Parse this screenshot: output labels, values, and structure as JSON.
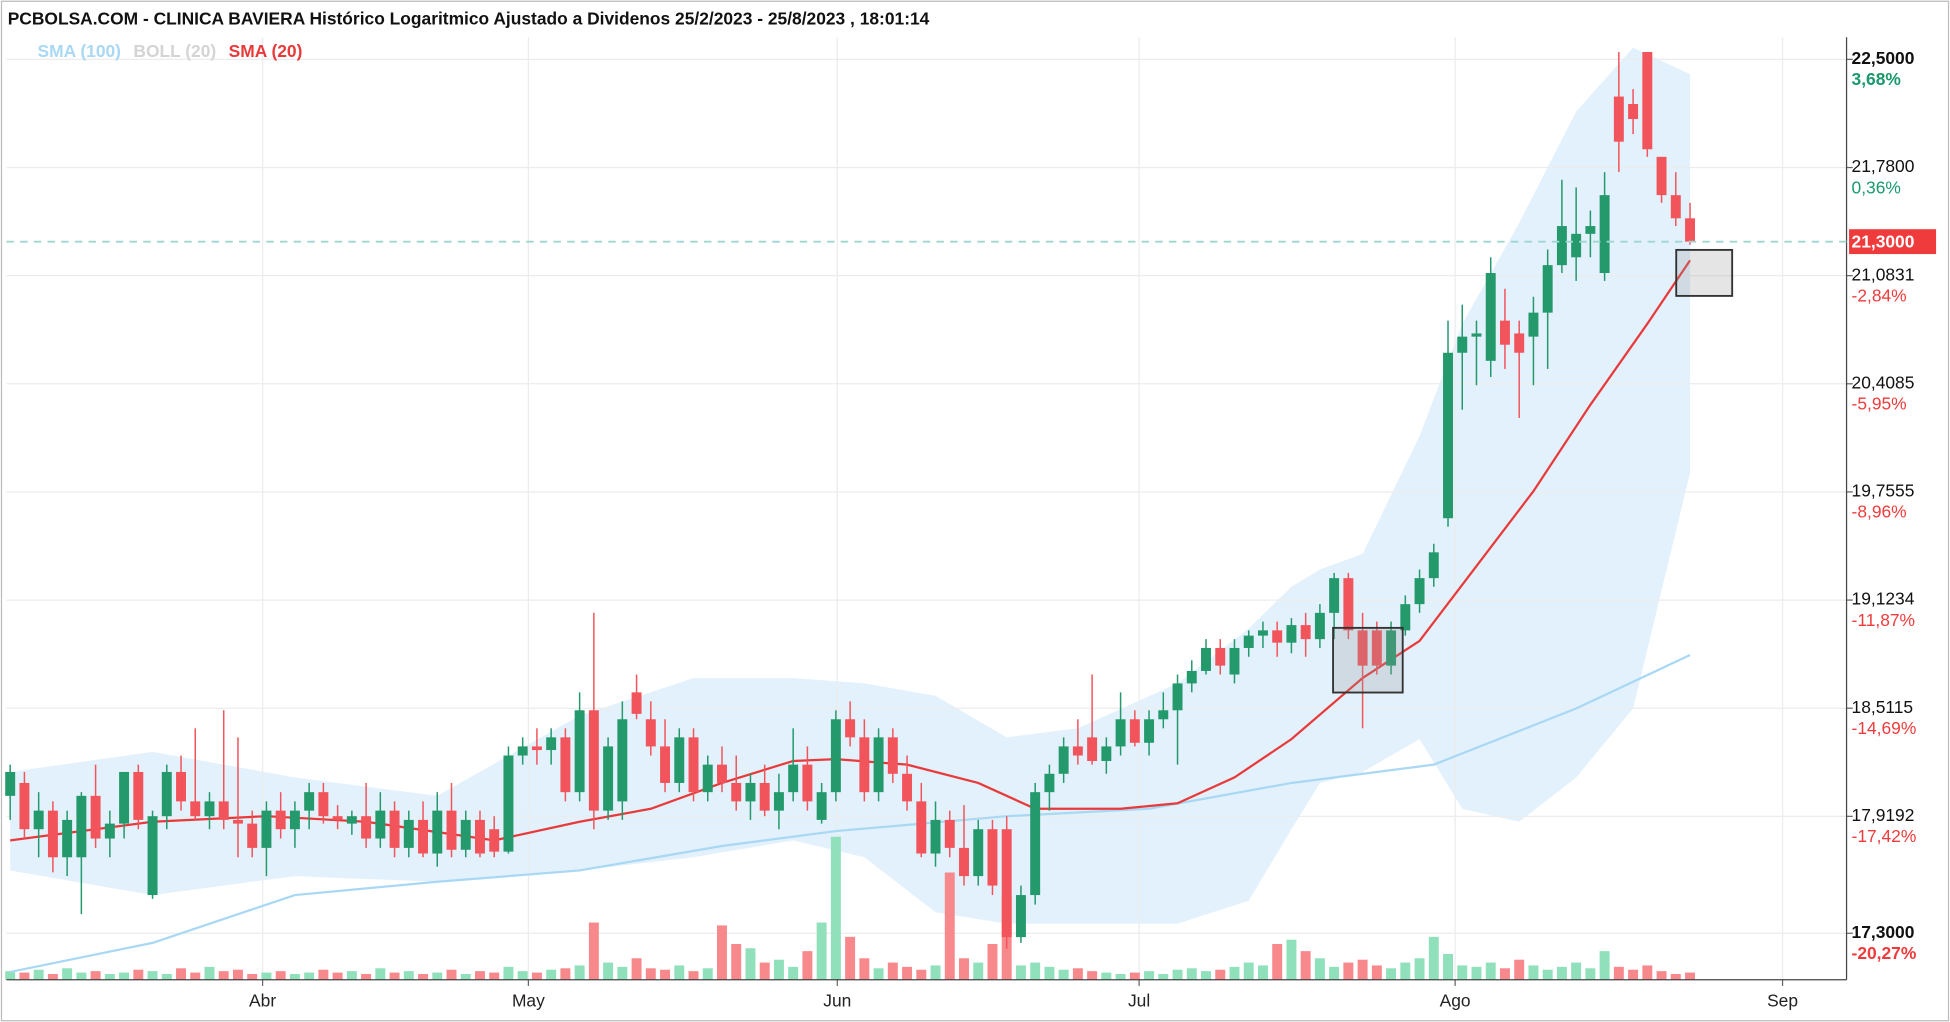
{
  "chart_data": {
    "type": "candlestick",
    "title": "PCBOLSA.COM - CLINICA BAVIERA Histórico Logaritmico Ajustado a Dividenos 25/2/2023 - 25/8/2023 , 18:01:14",
    "log_scale": true,
    "grid": true,
    "ylim": [
      17.06,
      22.65
    ],
    "yticks": [
      {
        "value": 22.5,
        "label": "22,5000"
      },
      {
        "value": 21.78,
        "label": "21,7800"
      },
      {
        "value": 21.0831,
        "label": "21,0831"
      },
      {
        "value": 20.4085,
        "label": "20,4085"
      },
      {
        "value": 19.7555,
        "label": "19,7555"
      },
      {
        "value": 19.1234,
        "label": "19,1234"
      },
      {
        "value": 18.5115,
        "label": "18,5115"
      },
      {
        "value": 17.9192,
        "label": "17,9192"
      },
      {
        "value": 17.3,
        "label": "17,3000"
      }
    ],
    "ytick_change_labels": [
      "3,68%",
      "0,36%",
      "-2,84%",
      "-5,95%",
      "-8,96%",
      "-11,87%",
      "-14,69%",
      "-17,42%",
      "-20,27%"
    ],
    "xticks": [
      {
        "value": 17.73,
        "label": "Abr"
      },
      {
        "value": 36.4,
        "label": "May"
      },
      {
        "value": 58.1,
        "label": "Jun"
      },
      {
        "value": 79.3,
        "label": "Jul"
      },
      {
        "value": 101.5,
        "label": "Ago"
      },
      {
        "value": 124.5,
        "label": "Sep"
      }
    ],
    "last_price": {
      "value": 21.3,
      "label": "21,3000"
    },
    "up_color": "#23996c",
    "down_color": "#f2545b",
    "open": [
      18.03,
      18.1,
      17.85,
      17.95,
      17.7,
      17.7,
      18.03,
      17.8,
      17.88,
      18.16,
      17.5,
      17.92,
      18.16,
      18.0,
      17.92,
      18.0,
      17.9,
      17.88,
      17.75,
      17.95,
      17.85,
      17.95,
      18.05,
      17.92,
      17.88,
      17.92,
      17.8,
      17.95,
      17.75,
      17.9,
      17.72,
      17.95,
      17.74,
      17.9,
      17.85,
      17.73,
      18.25,
      18.3,
      18.28,
      18.35,
      18.05,
      18.5,
      17.95,
      18.0,
      18.6,
      18.45,
      18.3,
      18.1,
      18.35,
      18.05,
      18.2,
      18.1,
      18.0,
      18.1,
      17.95,
      18.05,
      18.2,
      17.9,
      18.05,
      18.45,
      18.35,
      18.05,
      18.35,
      18.15,
      18.0,
      17.72,
      17.9,
      17.75,
      17.6,
      17.85,
      17.85,
      17.28,
      17.5,
      18.05,
      18.15,
      18.3,
      18.35,
      18.22,
      18.3,
      18.45,
      18.32,
      18.45,
      18.5,
      18.65,
      18.72,
      18.85,
      18.7,
      18.85,
      18.92,
      18.95,
      18.88,
      18.98,
      18.9,
      19.05,
      19.25,
      18.95,
      18.95,
      18.75,
      18.95,
      19.1,
      19.25,
      19.6,
      20.6,
      20.7,
      20.55,
      20.8,
      20.72,
      20.7,
      20.85,
      21.15,
      21.2,
      21.35,
      21.1,
      22.25,
      22.2,
      22.55,
      21.85,
      21.6,
      21.45
    ],
    "high": [
      18.2,
      18.16,
      18.05,
      18.0,
      17.95,
      18.05,
      18.2,
      17.95,
      18.16,
      18.2,
      17.95,
      18.2,
      18.25,
      18.4,
      18.05,
      18.5,
      18.35,
      17.95,
      18.0,
      18.05,
      18.0,
      18.1,
      18.1,
      17.98,
      17.95,
      18.1,
      18.05,
      18.0,
      17.95,
      18.0,
      18.05,
      18.1,
      17.95,
      17.95,
      17.92,
      18.3,
      18.35,
      18.4,
      18.4,
      18.4,
      18.6,
      19.05,
      18.35,
      18.55,
      18.7,
      18.55,
      18.45,
      18.4,
      18.4,
      18.25,
      18.3,
      18.25,
      18.15,
      18.2,
      18.15,
      18.4,
      18.3,
      18.1,
      18.5,
      18.55,
      18.45,
      18.4,
      18.4,
      18.25,
      18.1,
      18.0,
      17.95,
      17.98,
      17.9,
      17.9,
      17.92,
      17.55,
      18.1,
      18.2,
      18.35,
      18.45,
      18.7,
      18.35,
      18.6,
      18.5,
      18.5,
      18.6,
      18.7,
      18.78,
      18.9,
      18.9,
      18.9,
      18.95,
      19.0,
      19.0,
      19.02,
      19.05,
      19.1,
      19.28,
      19.28,
      19.05,
      19.0,
      19.0,
      19.15,
      19.3,
      19.45,
      20.8,
      20.9,
      20.8,
      21.2,
      21.0,
      20.8,
      20.95,
      21.25,
      21.7,
      21.65,
      21.5,
      21.75,
      22.55,
      22.3,
      22.55,
      21.85,
      21.75,
      21.55
    ],
    "low": [
      17.9,
      17.8,
      17.7,
      17.62,
      17.6,
      17.4,
      17.75,
      17.7,
      17.8,
      17.85,
      17.48,
      17.85,
      17.95,
      17.9,
      17.85,
      17.85,
      17.7,
      17.7,
      17.6,
      17.8,
      17.75,
      17.85,
      17.88,
      17.85,
      17.82,
      17.75,
      17.75,
      17.7,
      17.7,
      17.7,
      17.65,
      17.7,
      17.7,
      17.7,
      17.7,
      17.72,
      18.2,
      18.2,
      18.2,
      18.0,
      18.0,
      17.85,
      17.9,
      17.9,
      18.45,
      18.25,
      18.05,
      18.05,
      18.0,
      18.0,
      18.05,
      17.95,
      17.9,
      17.92,
      17.85,
      18.0,
      17.95,
      17.88,
      18.0,
      18.3,
      18.0,
      18.0,
      18.1,
      17.95,
      17.7,
      17.65,
      17.7,
      17.55,
      17.55,
      17.5,
      17.22,
      17.25,
      17.45,
      17.95,
      18.1,
      18.2,
      18.2,
      18.15,
      18.25,
      18.3,
      18.25,
      18.4,
      18.2,
      18.6,
      18.7,
      18.7,
      18.65,
      18.8,
      18.85,
      18.8,
      18.82,
      18.8,
      18.85,
      18.9,
      18.9,
      18.4,
      18.7,
      18.7,
      18.92,
      19.05,
      19.2,
      19.55,
      20.25,
      20.4,
      20.45,
      20.5,
      20.2,
      20.4,
      20.5,
      21.1,
      21.05,
      21.2,
      21.05,
      21.75,
      22.0,
      21.85,
      21.55,
      21.4,
      21.28
    ],
    "close": [
      18.16,
      17.85,
      17.95,
      17.7,
      17.9,
      18.03,
      17.8,
      17.88,
      18.16,
      17.9,
      17.92,
      18.16,
      18.0,
      17.92,
      18.0,
      17.9,
      17.88,
      17.75,
      17.95,
      17.85,
      17.95,
      18.05,
      17.92,
      17.9,
      17.92,
      17.8,
      17.95,
      17.75,
      17.9,
      17.72,
      17.95,
      17.74,
      17.9,
      17.72,
      17.73,
      18.25,
      18.3,
      18.28,
      18.35,
      18.05,
      18.5,
      17.95,
      18.3,
      18.45,
      18.48,
      18.3,
      18.1,
      18.35,
      18.05,
      18.2,
      18.1,
      18.0,
      18.1,
      17.95,
      18.05,
      18.2,
      18.0,
      18.05,
      18.45,
      18.35,
      18.05,
      18.35,
      18.15,
      18.0,
      17.72,
      17.9,
      17.75,
      17.6,
      17.85,
      17.55,
      17.28,
      17.5,
      18.05,
      18.15,
      18.3,
      18.25,
      18.22,
      18.3,
      18.45,
      18.32,
      18.45,
      18.5,
      18.65,
      18.72,
      18.85,
      18.75,
      18.85,
      18.92,
      18.95,
      18.88,
      18.98,
      18.9,
      19.05,
      19.25,
      18.95,
      18.75,
      18.75,
      18.95,
      19.1,
      19.25,
      19.4,
      20.6,
      20.7,
      20.72,
      21.1,
      20.65,
      20.6,
      20.85,
      21.15,
      21.4,
      21.35,
      21.4,
      21.6,
      21.95,
      22.1,
      21.9,
      21.6,
      21.45,
      21.3
    ],
    "volume": {
      "values": [
        6,
        5,
        7,
        4,
        8,
        5,
        6,
        4,
        5,
        7,
        6,
        4,
        8,
        5,
        9,
        6,
        7,
        4,
        5,
        6,
        4,
        5,
        7,
        5,
        6,
        4,
        8,
        5,
        6,
        4,
        5,
        7,
        4,
        6,
        5,
        9,
        6,
        5,
        7,
        8,
        10,
        40,
        12,
        9,
        15,
        8,
        7,
        10,
        6,
        8,
        38,
        25,
        22,
        12,
        14,
        9,
        20,
        40,
        100,
        30,
        15,
        8,
        12,
        9,
        7,
        10,
        75,
        15,
        12,
        25,
        58,
        10,
        12,
        9,
        7,
        8,
        6,
        5,
        4,
        5,
        6,
        4,
        7,
        8,
        6,
        7,
        9,
        12,
        10,
        25,
        28,
        20,
        15,
        9,
        12,
        14,
        10,
        8,
        12,
        15,
        30,
        18,
        10,
        9,
        12,
        8,
        14,
        10,
        7,
        9,
        12,
        8,
        20,
        9,
        7,
        10,
        6,
        4,
        5
      ],
      "ylim": [
        0,
        100
      ],
      "up_color": "#8fe0bb",
      "down_color": "#f7898d"
    },
    "series": [
      {
        "name": "SMA (100)",
        "type": "line",
        "color": "#a9d8f4",
        "x": [
          0,
          10,
          20,
          30,
          40,
          50,
          58,
          70,
          80,
          90,
          100,
          110,
          118
        ],
        "values": [
          17.1,
          17.25,
          17.5,
          17.57,
          17.63,
          17.76,
          17.84,
          17.92,
          17.96,
          18.1,
          18.2,
          18.51,
          18.81
        ]
      },
      {
        "name": "BOLL (20)",
        "type": "band",
        "color": "#d4d4d4",
        "fill": "#dbeefb",
        "x": [
          0,
          10,
          20,
          30,
          40,
          48,
          55,
          60,
          65,
          70,
          75,
          82,
          87,
          90,
          92,
          95,
          99,
          102,
          106,
          110,
          114,
          118
        ],
        "upper": [
          18.16,
          18.27,
          18.13,
          18.03,
          18.47,
          18.68,
          18.68,
          18.65,
          18.58,
          18.35,
          18.4,
          18.65,
          18.96,
          19.2,
          19.3,
          19.39,
          20.09,
          20.78,
          21.42,
          22.15,
          22.58,
          22.4
        ],
        "lower": [
          17.63,
          17.5,
          17.6,
          17.57,
          17.63,
          17.7,
          17.79,
          17.7,
          17.41,
          17.35,
          17.35,
          17.35,
          17.47,
          17.85,
          18.1,
          18.16,
          18.34,
          17.96,
          17.89,
          18.13,
          18.51,
          19.87
        ]
      },
      {
        "name": "SMA (20)",
        "type": "line",
        "color": "#e83a3a",
        "x": [
          0,
          10,
          18,
          25,
          34,
          40,
          45,
          50,
          55,
          58,
          63,
          68,
          72,
          78,
          82,
          86,
          90,
          95,
          99,
          103,
          107,
          111,
          115,
          118
        ],
        "values": [
          17.79,
          17.89,
          17.92,
          17.89,
          17.79,
          17.89,
          17.96,
          18.1,
          18.22,
          18.23,
          18.2,
          18.1,
          17.96,
          17.96,
          17.99,
          18.13,
          18.34,
          18.68,
          18.89,
          19.32,
          19.76,
          20.28,
          20.78,
          21.18
        ]
      }
    ]
  }
}
